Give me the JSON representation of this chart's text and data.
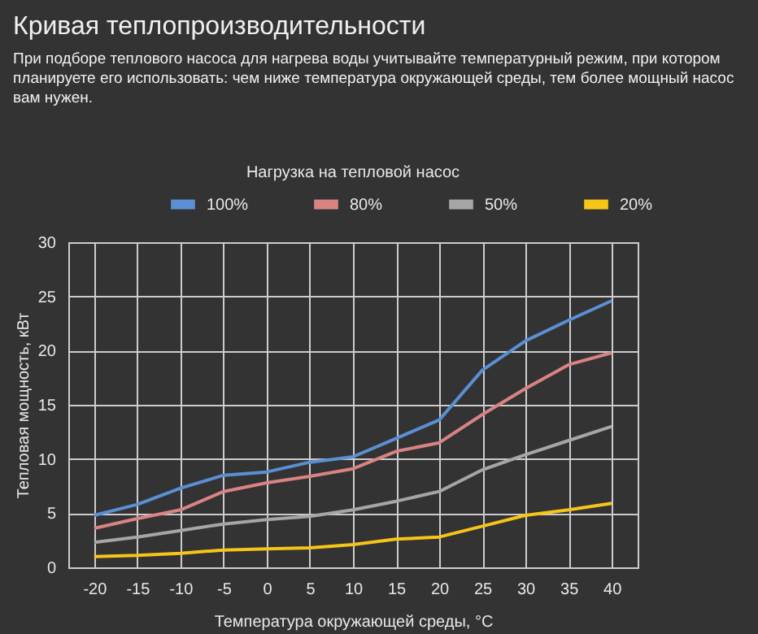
{
  "chart_data": {
    "type": "line",
    "title": "Кривая теплопроизводительности",
    "subtitle": "При подборе теплового насоса для нагрева воды учитывайте температурный режим, при котором планируете его использовать: чем ниже температура окружающей среды, тем более мощный насос вам нужен.",
    "legend_title": "Нагрузка на тепловой насос",
    "xlabel": "Температура окружающей среды, °C",
    "ylabel": "Тепловая мощность, кВт",
    "categories": [
      "-20",
      "-15",
      "-10",
      "-5",
      "0",
      "5",
      "10",
      "15",
      "20",
      "25",
      "30",
      "35",
      "40"
    ],
    "ylim": [
      0,
      30
    ],
    "yticks": [
      0,
      5,
      10,
      15,
      20,
      25,
      30
    ],
    "grid": true,
    "legend": "top",
    "marker": "none",
    "line_style": "solid",
    "series": [
      {
        "name": "100%",
        "color": "#5b8fd4",
        "values": [
          4.8,
          5.8,
          7.3,
          8.5,
          8.8,
          9.7,
          10.2,
          11.9,
          13.6,
          18.2,
          20.9,
          22.8,
          24.6
        ]
      },
      {
        "name": "80%",
        "color": "#d98383",
        "values": [
          3.6,
          4.5,
          5.3,
          7.0,
          7.8,
          8.4,
          9.1,
          10.7,
          11.5,
          14.1,
          16.5,
          18.7,
          19.8
        ]
      },
      {
        "name": "50%",
        "color": "#a6a6a6",
        "values": [
          2.3,
          2.8,
          3.4,
          4.0,
          4.4,
          4.7,
          5.3,
          6.1,
          7.0,
          9.0,
          10.4,
          11.7,
          13.0
        ]
      },
      {
        "name": "20%",
        "color": "#f5c518",
        "values": [
          1.0,
          1.1,
          1.3,
          1.6,
          1.7,
          1.8,
          2.1,
          2.6,
          2.8,
          3.8,
          4.8,
          5.3,
          5.9
        ]
      }
    ]
  }
}
